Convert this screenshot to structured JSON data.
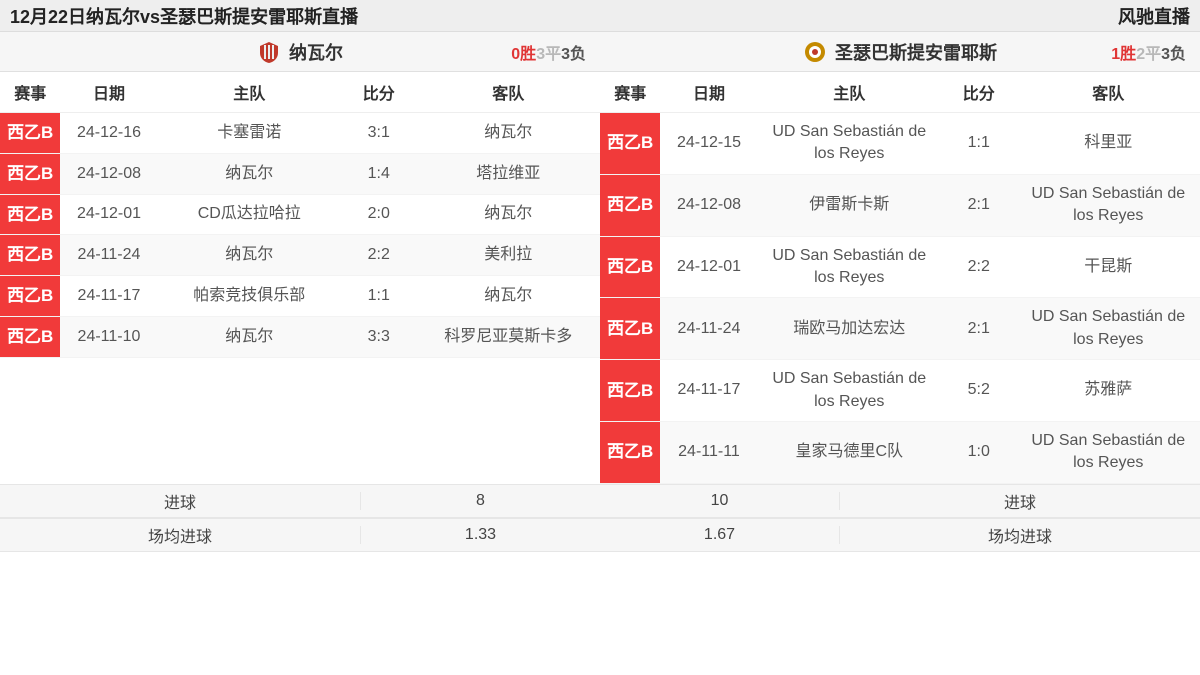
{
  "header": {
    "title": "12月22日纳瓦尔vs圣瑟巴斯提安雷耶斯直播",
    "site": "风驰直播"
  },
  "colors": {
    "league_bg": "#f13a3a",
    "win": "#e03636",
    "draw": "#b8b8b8",
    "loss": "#555555",
    "row_alt": "#f9f9f9",
    "border": "#e6e6e6",
    "header_bg": "#eeeeee"
  },
  "columns": {
    "league": "赛事",
    "date": "日期",
    "home": "主队",
    "score": "比分",
    "away": "客队"
  },
  "left": {
    "team": "纳瓦尔",
    "crest_colors": {
      "stripes": [
        "#c0392b",
        "#ecf0f1"
      ],
      "base": "#2c3e50"
    },
    "record": {
      "w": "0胜",
      "d": "3平",
      "l": "3负"
    },
    "rows": [
      {
        "league": "西乙B",
        "date": "24-12-16",
        "home": "卡塞雷诺",
        "score": "3:1",
        "away": "纳瓦尔"
      },
      {
        "league": "西乙B",
        "date": "24-12-08",
        "home": "纳瓦尔",
        "score": "1:4",
        "away": "塔拉维亚"
      },
      {
        "league": "西乙B",
        "date": "24-12-01",
        "home": "CD瓜达拉哈拉",
        "score": "2:0",
        "away": "纳瓦尔"
      },
      {
        "league": "西乙B",
        "date": "24-11-24",
        "home": "纳瓦尔",
        "score": "2:2",
        "away": "美利拉"
      },
      {
        "league": "西乙B",
        "date": "24-11-17",
        "home": "帕索竞技俱乐部",
        "score": "1:1",
        "away": "纳瓦尔"
      },
      {
        "league": "西乙B",
        "date": "24-11-10",
        "home": "纳瓦尔",
        "score": "3:3",
        "away": "科罗尼亚莫斯卡多"
      }
    ],
    "stats": {
      "goals_label": "进球",
      "goals_value": "8",
      "avg_label": "场均进球",
      "avg_value": "1.33"
    }
  },
  "right": {
    "team": "圣瑟巴斯提安雷耶斯",
    "crest_colors": {
      "ring": "#c48a00",
      "center": "#ffffff"
    },
    "record": {
      "w": "1胜",
      "d": "2平",
      "l": "3负"
    },
    "rows": [
      {
        "league": "西乙B",
        "date": "24-12-15",
        "home": "UD San Sebastián de los Reyes",
        "score": "1:1",
        "away": "科里亚"
      },
      {
        "league": "西乙B",
        "date": "24-12-08",
        "home": "伊雷斯卡斯",
        "score": "2:1",
        "away": "UD San Sebastián de los Reyes"
      },
      {
        "league": "西乙B",
        "date": "24-12-01",
        "home": "UD San Sebastián de los Reyes",
        "score": "2:2",
        "away": "干昆斯"
      },
      {
        "league": "西乙B",
        "date": "24-11-24",
        "home": "瑞欧马加达宏达",
        "score": "2:1",
        "away": "UD San Sebastián de los Reyes"
      },
      {
        "league": "西乙B",
        "date": "24-11-17",
        "home": "UD San Sebastián de los Reyes",
        "score": "5:2",
        "away": "苏雅萨"
      },
      {
        "league": "西乙B",
        "date": "24-11-11",
        "home": "皇家马德里C队",
        "score": "1:0",
        "away": "UD San Sebastián de los Reyes"
      }
    ],
    "stats": {
      "goals_label": "进球",
      "goals_value": "10",
      "avg_label": "场均进球",
      "avg_value": "1.67"
    }
  }
}
